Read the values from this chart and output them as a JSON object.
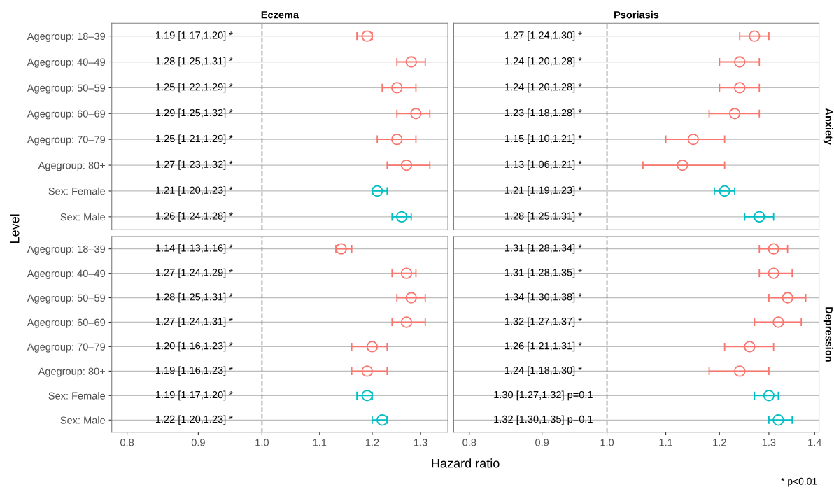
{
  "chart_data": [
    {
      "type": "scatter",
      "title": "Eczema",
      "ylabel": "Level",
      "orientation": "horizontal",
      "log": "x",
      "grid": "y",
      "marker": "circle",
      "tick_labels": "y",
      "xlim": [
        0.78,
        1.36
      ],
      "categories": [
        "Agegroup: 18–39",
        "Agegroup: 40–49",
        "Agegroup: 50–59",
        "Agegroup: 60–69",
        "Agegroup: 70–79",
        "Agegroup: 80+",
        "Sex: Female",
        "Sex: Male"
      ],
      "ref_lines": [
        {
          "axis": "x",
          "value": 1,
          "color": "#999999",
          "line_style": "dashed"
        }
      ],
      "annotations": [
        "1.19 [1.17,1.20] *",
        "1.28 [1.25,1.31] *",
        "1.25 [1.22,1.29] *",
        "1.29 [1.25,1.32] *",
        "1.25 [1.21,1.29] *",
        "1.27 [1.23,1.32] *",
        "1.21 [1.20,1.23] *",
        "1.26 [1.24,1.28] *"
      ],
      "series": [
        {
          "colors": [
            "#f8766d",
            "#f8766d",
            "#f8766d",
            "#f8766d",
            "#f8766d",
            "#f8766d",
            "#00bfc4",
            "#00bfc4"
          ],
          "values": [
            1.19,
            1.28,
            1.25,
            1.29,
            1.25,
            1.27,
            1.21,
            1.26
          ],
          "errors": [
            [
              1.17,
              1.2
            ],
            [
              1.25,
              1.31
            ],
            [
              1.22,
              1.29
            ],
            [
              1.25,
              1.32
            ],
            [
              1.21,
              1.29
            ],
            [
              1.23,
              1.32
            ],
            [
              1.2,
              1.23
            ],
            [
              1.24,
              1.28
            ]
          ]
        }
      ]
    },
    {
      "type": "scatter",
      "title": "Psoriasis",
      "y2label": "Anxiety",
      "orientation": "horizontal",
      "log": "x",
      "grid": "y",
      "marker": "circle",
      "tick_labels": false,
      "xlim": [
        0.78,
        1.41
      ],
      "categories": [
        null,
        null,
        null,
        null,
        null,
        null,
        null,
        null
      ],
      "ref_lines": [
        {
          "axis": "x",
          "value": 1,
          "color": "#999999",
          "line_style": "dashed"
        }
      ],
      "annotations": [
        "1.27 [1.24,1.30] *",
        "1.24 [1.20,1.28] *",
        "1.24 [1.20,1.28] *",
        "1.23 [1.18,1.28] *",
        "1.15 [1.10,1.21] *",
        "1.13 [1.06,1.21] *",
        "1.21 [1.19,1.23] *",
        "1.28 [1.25,1.31] *"
      ],
      "series": [
        {
          "colors": [
            "#f8766d",
            "#f8766d",
            "#f8766d",
            "#f8766d",
            "#f8766d",
            "#f8766d",
            "#00bfc4",
            "#00bfc4"
          ],
          "values": [
            1.27,
            1.24,
            1.24,
            1.23,
            1.15,
            1.13,
            1.21,
            1.28
          ],
          "errors": [
            [
              1.24,
              1.3
            ],
            [
              1.2,
              1.28
            ],
            [
              1.2,
              1.28
            ],
            [
              1.18,
              1.28
            ],
            [
              1.1,
              1.21
            ],
            [
              1.06,
              1.21
            ],
            [
              1.19,
              1.23
            ],
            [
              1.25,
              1.31
            ]
          ]
        }
      ]
    },
    {
      "type": "scatter",
      "xlabel": "Hazard ratio",
      "orientation": "horizontal",
      "log": "x",
      "grid": "y",
      "marker": "circle",
      "xlim": [
        0.78,
        1.36
      ],
      "xticks": [
        0.8,
        0.9,
        {
          "value": 1,
          "label": "1.0"
        },
        1.1,
        1.2,
        1.3
      ],
      "categories": [
        "Agegroup: 18–39",
        "Agegroup: 40–49",
        "Agegroup: 50–59",
        "Agegroup: 60–69",
        "Agegroup: 70–79",
        "Agegroup: 80+",
        "Sex: Female",
        "Sex: Male"
      ],
      "ref_lines": [
        {
          "axis": "x",
          "value": 1,
          "color": "#999999",
          "line_style": "dashed"
        }
      ],
      "annotations": [
        "1.14 [1.13,1.16] *",
        "1.27 [1.24,1.29] *",
        "1.28 [1.25,1.31] *",
        "1.27 [1.24,1.31] *",
        "1.20 [1.16,1.23] *",
        "1.19 [1.16,1.23] *",
        "1.19 [1.17,1.20] *",
        "1.22 [1.20,1.23] *"
      ],
      "series": [
        {
          "colors": [
            "#f8766d",
            "#f8766d",
            "#f8766d",
            "#f8766d",
            "#f8766d",
            "#f8766d",
            "#00bfc4",
            "#00bfc4"
          ],
          "values": [
            1.14,
            1.27,
            1.28,
            1.27,
            1.2,
            1.19,
            1.19,
            1.22
          ],
          "errors": [
            [
              1.13,
              1.16
            ],
            [
              1.24,
              1.29
            ],
            [
              1.25,
              1.31
            ],
            [
              1.24,
              1.31
            ],
            [
              1.16,
              1.23
            ],
            [
              1.16,
              1.23
            ],
            [
              1.17,
              1.2
            ],
            [
              1.2,
              1.23
            ]
          ]
        }
      ]
    },
    {
      "type": "scatter",
      "y2label": "Depression",
      "orientation": "horizontal",
      "log": "x",
      "grid": "y",
      "marker": "circle",
      "tick_labels": "x",
      "xlim": [
        0.78,
        1.41
      ],
      "xticks": [
        0.8,
        0.9,
        {
          "value": 1,
          "label": "1.0"
        },
        1.1,
        1.2,
        1.3,
        1.4
      ],
      "categories": [
        null,
        null,
        null,
        null,
        null,
        null,
        null,
        null
      ],
      "ref_lines": [
        {
          "axis": "x",
          "value": 1,
          "color": "#999999",
          "line_style": "dashed"
        }
      ],
      "annotations": [
        "1.31 [1.28,1.34] *",
        "1.31 [1.28,1.35] *",
        "1.34 [1.30,1.38] *",
        "1.32 [1.27,1.37] *",
        "1.26 [1.21,1.31] *",
        "1.24 [1.18,1.30] *",
        "1.30 [1.27,1.32] p=0.1",
        "1.32 [1.30,1.35] p=0.1",
        "* p<0.01"
      ],
      "series": [
        {
          "colors": [
            "#f8766d",
            "#f8766d",
            "#f8766d",
            "#f8766d",
            "#f8766d",
            "#f8766d",
            "#00bfc4",
            "#00bfc4"
          ],
          "values": [
            1.31,
            1.31,
            1.34,
            1.32,
            1.26,
            1.24,
            1.3,
            1.32
          ],
          "errors": [
            [
              1.28,
              1.34
            ],
            [
              1.28,
              1.35
            ],
            [
              1.3,
              1.38
            ],
            [
              1.27,
              1.37
            ],
            [
              1.21,
              1.31
            ],
            [
              1.18,
              1.3
            ],
            [
              1.27,
              1.32
            ],
            [
              1.3,
              1.35
            ]
          ]
        }
      ]
    }
  ]
}
